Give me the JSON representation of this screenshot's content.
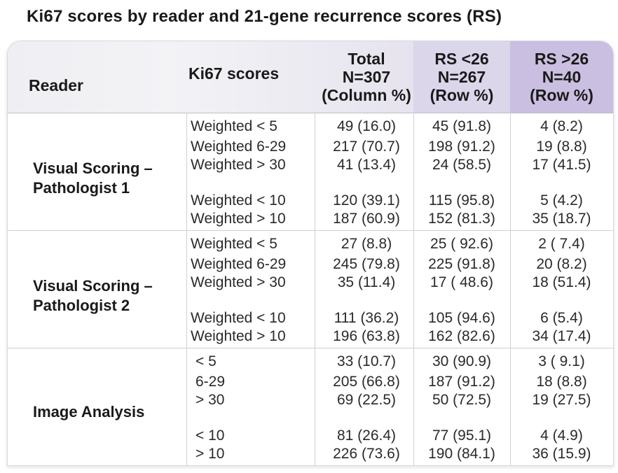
{
  "title": "Ki67 scores by reader and 21-gene recurrence scores (RS)",
  "header": {
    "reader": "Reader",
    "ki67": "Ki67 scores",
    "total": [
      "Total",
      "N=307",
      "(Column %)"
    ],
    "rs_low": [
      "RS <26",
      "N=267",
      "(Row %)"
    ],
    "rs_high": [
      "RS >26",
      "N=40",
      "(Row %)"
    ]
  },
  "colors": {
    "rs_low_header": "#dcd6ea",
    "rs_high_header": "#cabfe0"
  },
  "sections": [
    {
      "reader": [
        "Visual Scoring –",
        "Pathologist 1"
      ],
      "rows": [
        {
          "ki67": "Weighted < 5",
          "total": "49 (16.0)",
          "rs_low": "45 (91.8)",
          "rs_high": "4 (8.2)"
        },
        {
          "ki67": "Weighted 6-29",
          "total": "217 (70.7)",
          "rs_low": "198 (91.2)",
          "rs_high": "19 (8.8)"
        },
        {
          "ki67": "Weighted > 30",
          "total": "41 (13.4)",
          "rs_low": "24 (58.5)",
          "rs_high": "17 (41.5)"
        },
        {
          "ki67": "Weighted < 10",
          "total": "120 (39.1)",
          "rs_low": "115 (95.8)",
          "rs_high": "5 (4.2)"
        },
        {
          "ki67": "Weighted > 10",
          "total": "187 (60.9)",
          "rs_low": "152 (81.3)",
          "rs_high": "35 (18.7)"
        }
      ]
    },
    {
      "reader": [
        "Visual Scoring –",
        "Pathologist 2"
      ],
      "rows": [
        {
          "ki67": "Weighted < 5",
          "total": "27 (8.8)",
          "rs_low": "25 ( 92.6)",
          "rs_high": "2 ( 7.4)"
        },
        {
          "ki67": "Weighted 6-29",
          "total": "245 (79.8)",
          "rs_low": "225 (91.8)",
          "rs_high": "20 (8.2)"
        },
        {
          "ki67": "Weighted > 30",
          "total": "35 (11.4)",
          "rs_low": "17 ( 48.6)",
          "rs_high": "18 (51.4)"
        },
        {
          "ki67": "Weighted < 10",
          "total": "111 (36.2)",
          "rs_low": "105 (94.6)",
          "rs_high": "6 (5.4)"
        },
        {
          "ki67": "Weighted > 10",
          "total": "196 (63.8)",
          "rs_low": "162 (82.6)",
          "rs_high": "34 (17.4)"
        }
      ]
    },
    {
      "reader": [
        "Image Analysis"
      ],
      "rows": [
        {
          "ki67": "< 5",
          "total": "33 (10.7)",
          "rs_low": "30 (90.9)",
          "rs_high": "3 ( 9.1)"
        },
        {
          "ki67": "6-29",
          "total": "205 (66.8)",
          "rs_low": "187 (91.2)",
          "rs_high": "18 (8.8)"
        },
        {
          "ki67": "> 30",
          "total": "69 (22.5)",
          "rs_low": "50 (72.5)",
          "rs_high": "19 (27.5)"
        },
        {
          "ki67": "< 10",
          "total": "81 (26.4)",
          "rs_low": "77 (95.1)",
          "rs_high": "4 (4.9)"
        },
        {
          "ki67": "> 10",
          "total": "226 (73.6)",
          "rs_low": "190 (84.1)",
          "rs_high": "36 (15.9)"
        }
      ]
    }
  ]
}
